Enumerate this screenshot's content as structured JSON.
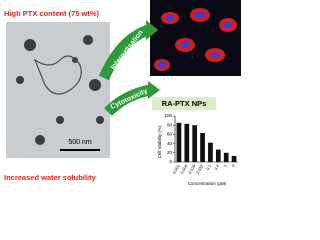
{
  "header": {
    "content": "High PTX content (75 wt%)",
    "solubility": "Increased water solubility"
  },
  "tem": {
    "scale_bar": "500 nm"
  },
  "arrows": {
    "upper": "Internalisation",
    "lower": "Cytotoxicity"
  },
  "chart_data": {
    "type": "bar",
    "title": "RA-PTX NPs",
    "x_label": "Concentration (μM)",
    "y_label": "Cell Viability (%)",
    "categories": [
      "0.001",
      "0.004",
      "0.016",
      "0.032",
      "0.1",
      "0.4",
      "1",
      "2"
    ],
    "values": [
      85,
      83,
      80,
      63,
      42,
      27,
      20,
      13
    ],
    "color": "#111111",
    "ylim": [
      0,
      100
    ],
    "yticks": [
      0,
      20,
      40,
      60,
      80,
      100
    ]
  }
}
